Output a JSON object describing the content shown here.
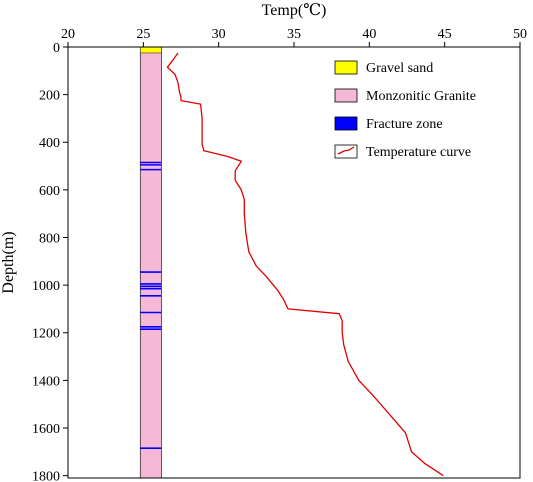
{
  "chart_data": {
    "type": "line",
    "xlabel": "Temp(℃)",
    "ylabel": "Depth(m)",
    "xlim": [
      20,
      50
    ],
    "ylim": [
      0,
      1810
    ],
    "y_inverted": true,
    "x_axis_position": "top",
    "xticks": [
      20,
      25,
      30,
      35,
      40,
      45,
      50
    ],
    "yticks": [
      0,
      200,
      400,
      600,
      800,
      1000,
      1200,
      1400,
      1600,
      1800
    ],
    "grid": false,
    "legend_position": "top-right",
    "lithology_column": {
      "x_range": [
        24.8,
        26.2
      ],
      "gravel_sand_depth": [
        0,
        25
      ],
      "fracture_zone_depths": [
        485,
        495,
        515,
        945,
        995,
        1005,
        1015,
        1045,
        1115,
        1175,
        1185,
        1685
      ]
    },
    "series": [
      {
        "name": "Temperature curve",
        "color": "#e00000",
        "x": [
          27.3,
          26.9,
          26.6,
          27.1,
          27.3,
          27.4,
          27.5,
          27.5,
          28.8,
          28.9,
          28.9,
          28.9,
          29.0,
          29.0,
          30.6,
          31.5,
          31.1,
          31.1,
          31.3,
          31.5,
          31.7,
          31.7,
          31.8,
          32.0,
          32.5,
          33.1,
          33.9,
          34.3,
          34.6,
          38.0,
          38.2,
          38.2,
          38.3,
          38.6,
          39.3,
          40.2,
          41.3,
          42.4,
          42.8,
          43.7,
          44.9
        ],
        "y": [
          25,
          60,
          85,
          115,
          150,
          190,
          210,
          225,
          240,
          300,
          360,
          410,
          430,
          435,
          460,
          480,
          520,
          560,
          580,
          600,
          640,
          700,
          780,
          860,
          920,
          960,
          1020,
          1060,
          1100,
          1120,
          1150,
          1200,
          1250,
          1320,
          1400,
          1460,
          1540,
          1620,
          1700,
          1750,
          1800
        ]
      }
    ]
  },
  "legend": {
    "items": [
      {
        "label": "Gravel sand",
        "swatch": "#ffff00"
      },
      {
        "label": "Monzonitic Granite",
        "swatch": "#f5b8d6"
      },
      {
        "label": "Fracture zone",
        "swatch": "#0000ff"
      },
      {
        "label": "Temperature curve",
        "swatch": "line"
      }
    ]
  }
}
